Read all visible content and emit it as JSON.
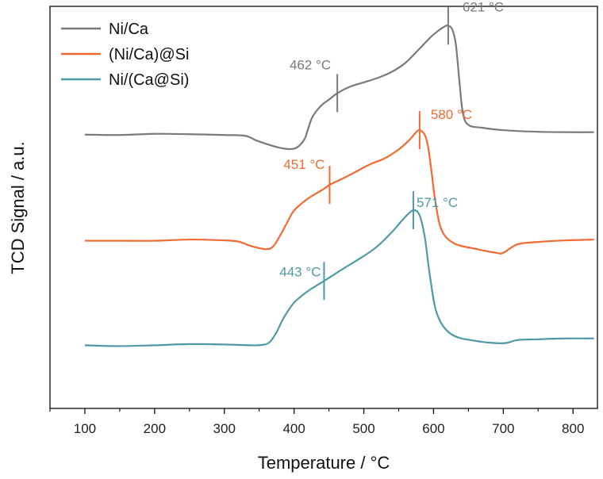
{
  "chart_data": {
    "type": "line",
    "xlabel": "Temperature / °C",
    "ylabel": "TCD Signal / a.u.",
    "xlim": [
      50,
      835
    ],
    "x_ticks": [
      100,
      200,
      300,
      400,
      500,
      600,
      700,
      800
    ],
    "x_tick_labels": [
      "100",
      "200",
      "300",
      "400",
      "500",
      "600",
      "700",
      "800"
    ],
    "ylim": [
      0,
      10
    ],
    "grid": false,
    "legend_position": "top-left",
    "series": [
      {
        "name": "Ni/Ca",
        "color": "#7a7a7a",
        "x": [
          100,
          150,
          200,
          250,
          300,
          330,
          345,
          360,
          380,
          395,
          405,
          415,
          420,
          425,
          430,
          440,
          450,
          462,
          480,
          500,
          520,
          540,
          560,
          580,
          595,
          605,
          615,
          621,
          627,
          632,
          637,
          642,
          650,
          670,
          700,
          750,
          800,
          830
        ],
        "y": [
          6.81,
          6.8,
          6.83,
          6.82,
          6.8,
          6.78,
          6.67,
          6.58,
          6.48,
          6.45,
          6.5,
          6.7,
          6.95,
          7.2,
          7.35,
          7.55,
          7.68,
          7.84,
          8.0,
          8.11,
          8.22,
          8.37,
          8.6,
          8.95,
          9.22,
          9.37,
          9.49,
          9.52,
          9.42,
          9.05,
          8.15,
          7.35,
          7.05,
          6.98,
          6.92,
          6.88,
          6.87,
          6.87
        ],
        "peaks": [
          {
            "x": 462,
            "label": "462 °C"
          },
          {
            "x": 621,
            "label": "621 °C"
          }
        ]
      },
      {
        "name": "(Ni/Ca)@Si",
        "color": "#f06a32",
        "x": [
          100,
          150,
          200,
          250,
          300,
          320,
          340,
          360,
          370,
          380,
          390,
          400,
          420,
          440,
          451,
          470,
          490,
          510,
          530,
          550,
          565,
          575,
          580,
          587,
          592,
          597,
          603,
          612,
          630,
          660,
          690,
          700,
          720,
          750,
          790,
          830
        ],
        "y": [
          4.17,
          4.17,
          4.17,
          4.2,
          4.18,
          4.15,
          4.03,
          3.96,
          4.03,
          4.3,
          4.62,
          4.92,
          5.22,
          5.43,
          5.56,
          5.72,
          5.9,
          6.08,
          6.22,
          6.44,
          6.67,
          6.87,
          6.92,
          6.82,
          6.52,
          5.9,
          5.1,
          4.42,
          4.1,
          3.97,
          3.87,
          3.87,
          4.08,
          4.14,
          4.18,
          4.2
        ],
        "peaks": [
          {
            "x": 451,
            "label": "451 °C"
          },
          {
            "x": 580,
            "label": "580 °C"
          }
        ]
      },
      {
        "name": "Ni/(Ca@Si)",
        "color": "#4f9aa6",
        "x": [
          100,
          150,
          200,
          250,
          300,
          340,
          355,
          365,
          375,
          385,
          400,
          420,
          443,
          470,
          500,
          520,
          540,
          555,
          565,
          571,
          577,
          582,
          588,
          595,
          605,
          625,
          660,
          700,
          720,
          750,
          790,
          830
        ],
        "y": [
          1.57,
          1.55,
          1.57,
          1.6,
          1.59,
          1.57,
          1.58,
          1.65,
          1.9,
          2.25,
          2.63,
          2.92,
          3.17,
          3.47,
          3.79,
          4.04,
          4.38,
          4.68,
          4.86,
          4.93,
          4.89,
          4.7,
          4.2,
          3.27,
          2.35,
          1.85,
          1.68,
          1.62,
          1.7,
          1.72,
          1.74,
          1.74
        ],
        "peaks": [
          {
            "x": 443,
            "label": "443 °C"
          },
          {
            "x": 571,
            "label": "571 °C"
          }
        ]
      }
    ]
  }
}
